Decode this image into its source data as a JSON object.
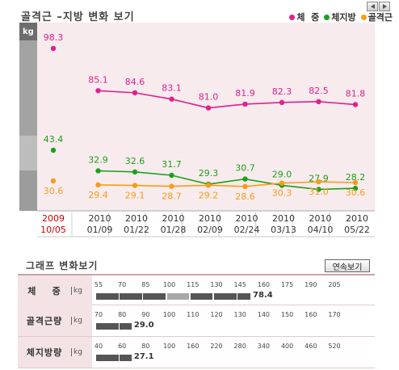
{
  "header": {
    "title": "골격근 –지방 변화 보기",
    "legend": [
      {
        "label": "체  중",
        "color": "#e0208e"
      },
      {
        "label": "체지방",
        "color": "#1ca01c"
      },
      {
        "label": "골격근",
        "color": "#f59d1a"
      }
    ]
  },
  "chart_data": {
    "type": "line",
    "title": "골격근 –지방 변화 보기",
    "ylabel": "kg",
    "categories": [
      [
        "2009",
        "10/05"
      ],
      [
        "2010",
        "01/09"
      ],
      [
        "2010",
        "01/22"
      ],
      [
        "2010",
        "01/28"
      ],
      [
        "2010",
        "02/09"
      ],
      [
        "2010",
        "02/24"
      ],
      [
        "2010",
        "03/13"
      ],
      [
        "2010",
        "04/10"
      ],
      [
        "2010",
        "05/22"
      ]
    ],
    "first_category_color": "#cc0000",
    "series": [
      {
        "name": "체  중",
        "color": "#e0208e",
        "values": [
          98.3,
          85.1,
          84.6,
          83.1,
          81.0,
          81.9,
          82.3,
          82.5,
          81.8
        ],
        "connect_from": 1
      },
      {
        "name": "체지방",
        "color": "#1ca01c",
        "values": [
          43.4,
          32.9,
          32.6,
          31.7,
          29.3,
          30.7,
          29.0,
          27.9,
          28.2
        ],
        "connect_from": 1
      },
      {
        "name": "골격근",
        "color": "#f59d1a",
        "values": [
          30.6,
          29.4,
          29.1,
          28.7,
          29.2,
          28.6,
          30.3,
          31.0,
          30.6
        ],
        "connect_from": 1
      }
    ],
    "grid": true
  },
  "scale": {
    "title": "그래프 변화보기",
    "button_label": "연속보기",
    "unit": "kg",
    "rows": [
      {
        "name": "체    중",
        "ticks": [
          55,
          70,
          85,
          100,
          115,
          130,
          145,
          160,
          175,
          190,
          205
        ],
        "value": 78.4,
        "value_text": "78.4"
      },
      {
        "name": "골격근량",
        "ticks": [
          70,
          80,
          90,
          100,
          110,
          120,
          130,
          140,
          150,
          160,
          170
        ],
        "value": 29.0,
        "value_text": "29.0"
      },
      {
        "name": "체지방량",
        "ticks": [
          40,
          60,
          80,
          100,
          160,
          220,
          280,
          340,
          400,
          460,
          520
        ],
        "value": 27.1,
        "value_text": "27.1"
      }
    ]
  }
}
